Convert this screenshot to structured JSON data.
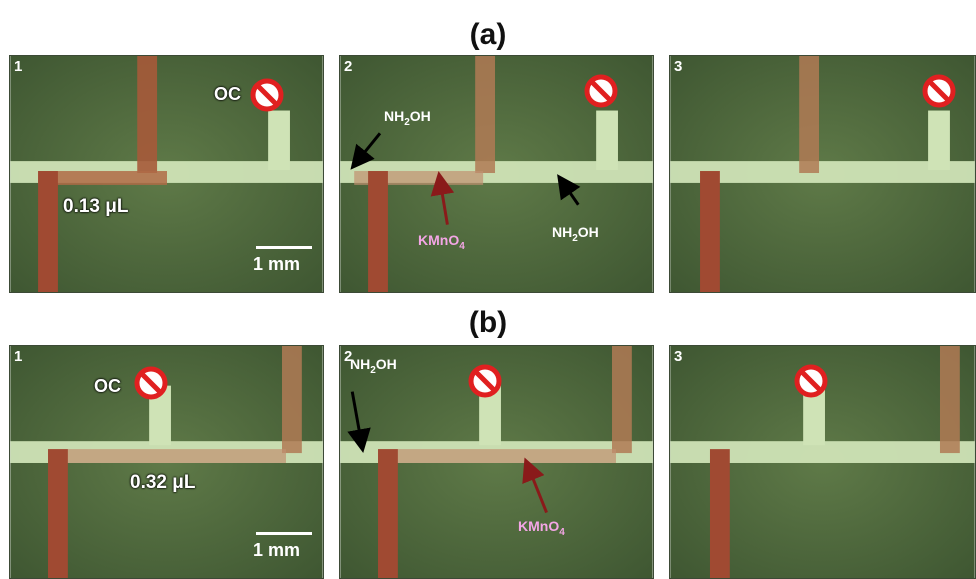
{
  "figure": {
    "row_a_label": "(a)",
    "row_b_label": "(b)"
  },
  "panels": {
    "a1": {
      "number": "1",
      "oc_label": "OC",
      "volume": "0.13 μL",
      "scale_bar": "1 mm"
    },
    "a2": {
      "number": "2",
      "nh2oh_left": [
        "NH",
        "2",
        "OH"
      ],
      "nh2oh_right": [
        "NH",
        "2",
        "OH"
      ],
      "kmno4": [
        "KMnO",
        "4"
      ]
    },
    "a3": {
      "number": "3"
    },
    "b1": {
      "number": "1",
      "oc_label": "OC",
      "volume": "0.32 μL",
      "scale_bar": "1 mm"
    },
    "b2": {
      "number": "2",
      "nh2oh_left": [
        "NH",
        "2",
        "OH"
      ],
      "kmno4": [
        "KMnO",
        "4"
      ]
    },
    "b3": {
      "number": "3"
    }
  },
  "colors": {
    "background_green": "#556e40",
    "channel_light": "#cfe3b6",
    "channel_red": "#9a4a32",
    "label_pink": "#f4a6e6",
    "arrow_red": "#8a1a1a",
    "stop_red": "#e02020"
  },
  "icons": [
    "no-entry-icon",
    "arrow-icon",
    "scale-bar"
  ]
}
